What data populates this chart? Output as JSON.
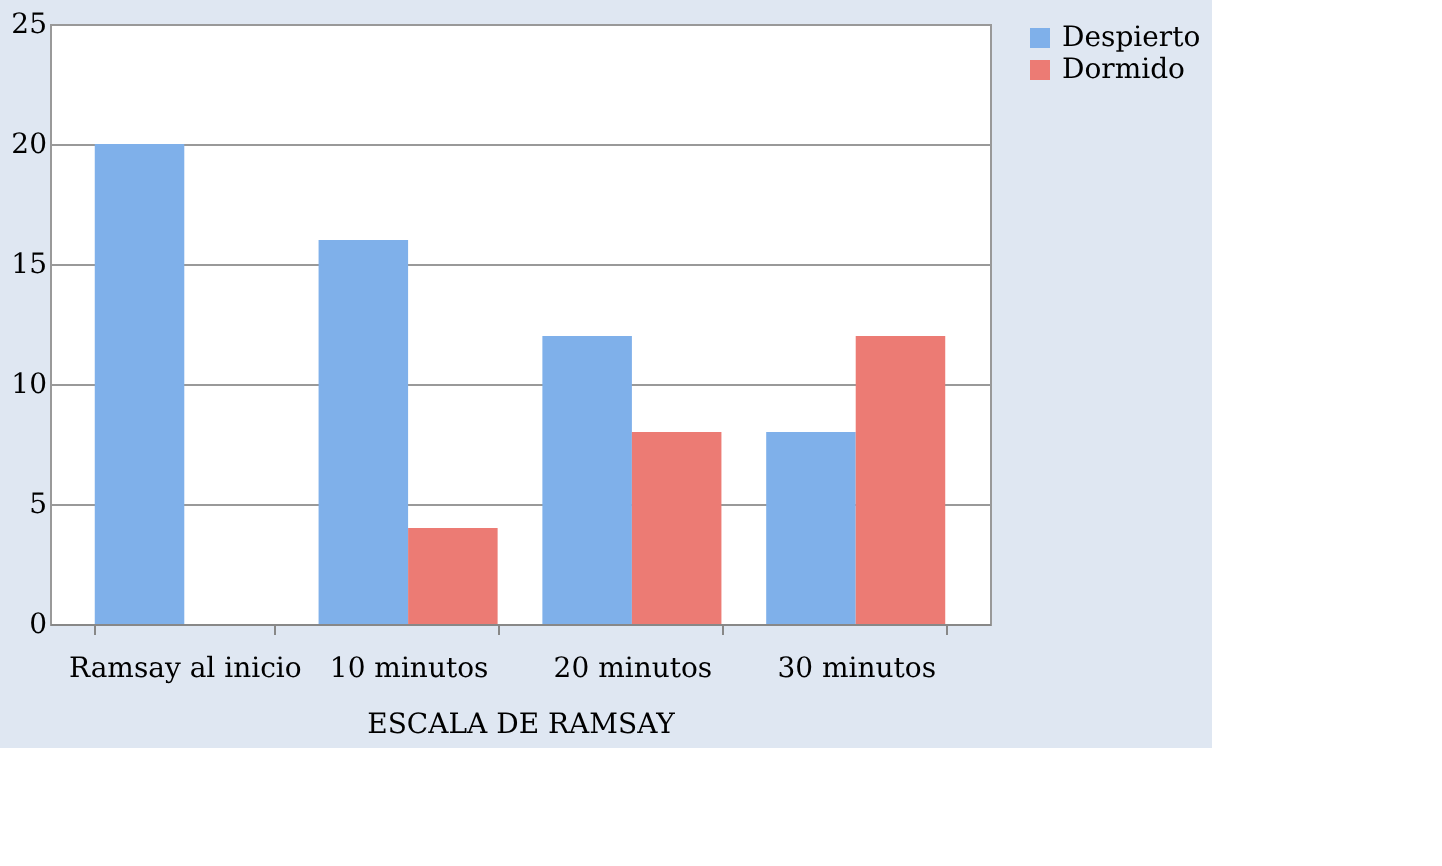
{
  "chart_data": {
    "type": "bar",
    "xlabel": "ESCALA DE RAMSAY",
    "categories": [
      "Ramsay al inicio",
      "10 minutos",
      "20 minutos",
      "30 minutos"
    ],
    "series": [
      {
        "name": "Despierto",
        "color": "#7fb0ea",
        "values": [
          20,
          16,
          12,
          8
        ]
      },
      {
        "name": "Dormido",
        "color": "#ec7b74",
        "values": [
          0,
          4,
          8,
          12
        ]
      }
    ],
    "ylim": [
      0,
      25
    ],
    "yticks": [
      0,
      5,
      10,
      15,
      20,
      25
    ],
    "grid": "y",
    "legend": "right"
  }
}
